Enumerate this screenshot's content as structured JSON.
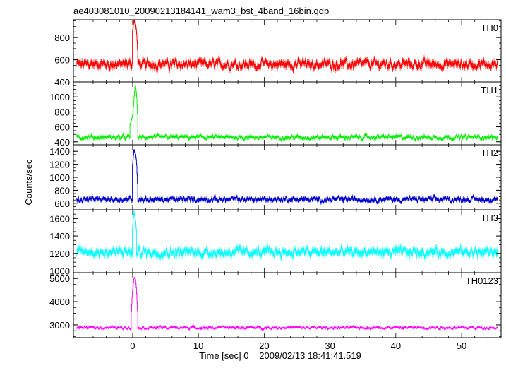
{
  "page": {
    "title": "ae403081010_20090213184141_wam3_bst_4band_16bin.qdp"
  },
  "chart_data": {
    "type": "line",
    "title": "ae403081010_20090213184141_wam3_bst_4band_16bin.qdp",
    "xlabel": "Time [sec] 0 = 2009/02/13 18:41:41.519",
    "ylabel": "Counts/sec",
    "xlim": [
      -9,
      56
    ],
    "x_ticks": [
      0,
      10,
      20,
      30,
      40,
      50
    ],
    "grid": false,
    "layout": "5 stacked panels sharing x axis",
    "series_sampling": {
      "x_start": -8.5,
      "x_end": 55.5,
      "step": 0.0625
    },
    "panels": [
      {
        "name": "TH0",
        "color": "#ff0000",
        "ylim": [
          400,
          960
        ],
        "y_ticks": [
          400,
          600,
          800
        ],
        "baseline": 560,
        "noise": 55,
        "spike": {
          "x": [
            0.0,
            0.2,
            0.4,
            0.6,
            0.8
          ],
          "y": [
            860,
            960,
            930,
            860,
            650
          ]
        }
      },
      {
        "name": "TH1",
        "color": "#00ee00",
        "ylim": [
          360,
          1200
        ],
        "y_ticks": [
          400,
          600,
          800,
          1000
        ],
        "baseline": 460,
        "noise": 40,
        "spike": {
          "x": [
            -0.4,
            0.0,
            0.2,
            0.4,
            0.6,
            0.8
          ],
          "y": [
            620,
            750,
            960,
            1160,
            1040,
            700
          ]
        }
      },
      {
        "name": "TH2",
        "color": "#0000cc",
        "ylim": [
          500,
          1500
        ],
        "y_ticks": [
          600,
          800,
          1000,
          1200,
          1400
        ],
        "baseline": 660,
        "noise": 55,
        "spike": {
          "x": [
            0.0,
            0.2,
            0.4,
            0.6,
            0.8
          ],
          "y": [
            1200,
            1420,
            1380,
            1250,
            800
          ]
        }
      },
      {
        "name": "TH3",
        "color": "#00ffff",
        "ylim": [
          980,
          1700
        ],
        "y_ticks": [
          1000,
          1200,
          1400,
          1600
        ],
        "baseline": 1215,
        "noise": 70,
        "spike": {
          "x": [
            0.0,
            0.2,
            0.4,
            0.6
          ],
          "y": [
            1500,
            1680,
            1600,
            1450
          ]
        }
      },
      {
        "name": "TH0123",
        "color": "#ff00ff",
        "ylim": [
          2450,
          5250
        ],
        "y_ticks": [
          3000,
          4000,
          5000
        ],
        "baseline": 2880,
        "noise": 85,
        "spike": {
          "x": [
            -0.2,
            0.0,
            0.2,
            0.4,
            0.6,
            0.8
          ],
          "y": [
            3500,
            4500,
            5000,
            5050,
            4500,
            3300
          ]
        }
      }
    ]
  }
}
